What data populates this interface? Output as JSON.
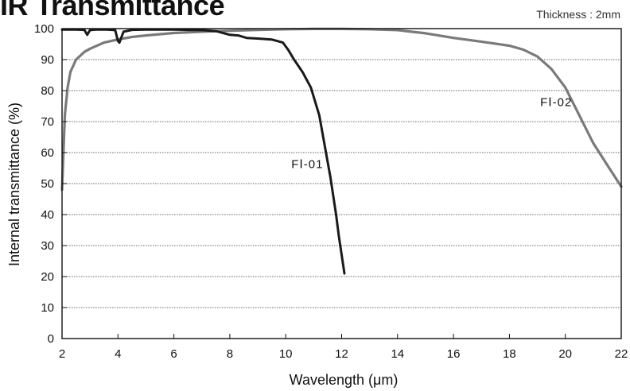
{
  "chart_data": {
    "type": "line",
    "title": "IR Transmittance",
    "note": "Thickness : 2mm",
    "xlabel": "Wavelength (μm)",
    "ylabel": "Internal transmittance (%)",
    "xlim": [
      2,
      22
    ],
    "ylim": [
      0,
      100
    ],
    "xticks": [
      2,
      4,
      6,
      8,
      10,
      12,
      14,
      16,
      18,
      20,
      22
    ],
    "yticks": [
      0,
      10,
      20,
      30,
      40,
      50,
      60,
      70,
      80,
      90,
      100
    ],
    "grid": "horizontal dotted",
    "colors": {
      "fl01": "#1a1a1a",
      "fl02": "#7a7a7a"
    },
    "series": [
      {
        "name": "FⅠ-01",
        "label_at": [
          10.2,
          55
        ],
        "x": [
          2.0,
          2.5,
          2.8,
          2.9,
          3.0,
          3.2,
          3.6,
          3.9,
          4.0,
          4.05,
          4.2,
          4.5,
          5.0,
          6.0,
          7.0,
          7.5,
          7.8,
          8.0,
          8.3,
          8.6,
          9.0,
          9.5,
          9.9,
          10.1,
          10.3,
          10.6,
          10.9,
          11.2,
          11.4,
          11.6,
          11.8,
          11.9,
          12.0,
          12.1
        ],
        "y": [
          99.7,
          99.7,
          99.6,
          98.0,
          99.5,
          99.7,
          99.7,
          99.5,
          96.0,
          95.5,
          99.0,
          99.6,
          99.7,
          99.7,
          99.5,
          99.2,
          98.5,
          98.0,
          97.8,
          97.0,
          96.8,
          96.5,
          95.5,
          93.0,
          90.0,
          86.0,
          81.0,
          72.0,
          62.0,
          52.0,
          40.0,
          33.0,
          27.0,
          21.0
        ]
      },
      {
        "name": "FⅠ-02",
        "label_at": [
          19.1,
          75
        ],
        "x": [
          2.0,
          2.1,
          2.2,
          2.3,
          2.5,
          2.8,
          3.0,
          3.5,
          4.0,
          4.5,
          5.0,
          6.0,
          7.0,
          8.0,
          9.0,
          10.0,
          11.0,
          12.0,
          13.0,
          14.0,
          15.0,
          16.0,
          17.0,
          18.0,
          18.5,
          19.0,
          19.5,
          20.0,
          20.5,
          21.0,
          21.5,
          22.0
        ],
        "y": [
          48.0,
          72.0,
          81.0,
          86.0,
          90.0,
          92.5,
          93.5,
          95.5,
          96.5,
          97.3,
          97.8,
          98.6,
          99.0,
          99.3,
          99.6,
          99.8,
          99.9,
          99.9,
          99.8,
          99.5,
          98.5,
          97.0,
          95.8,
          94.5,
          93.2,
          91.0,
          87.0,
          81.0,
          72.0,
          63.0,
          56.0,
          49.0
        ]
      }
    ]
  }
}
